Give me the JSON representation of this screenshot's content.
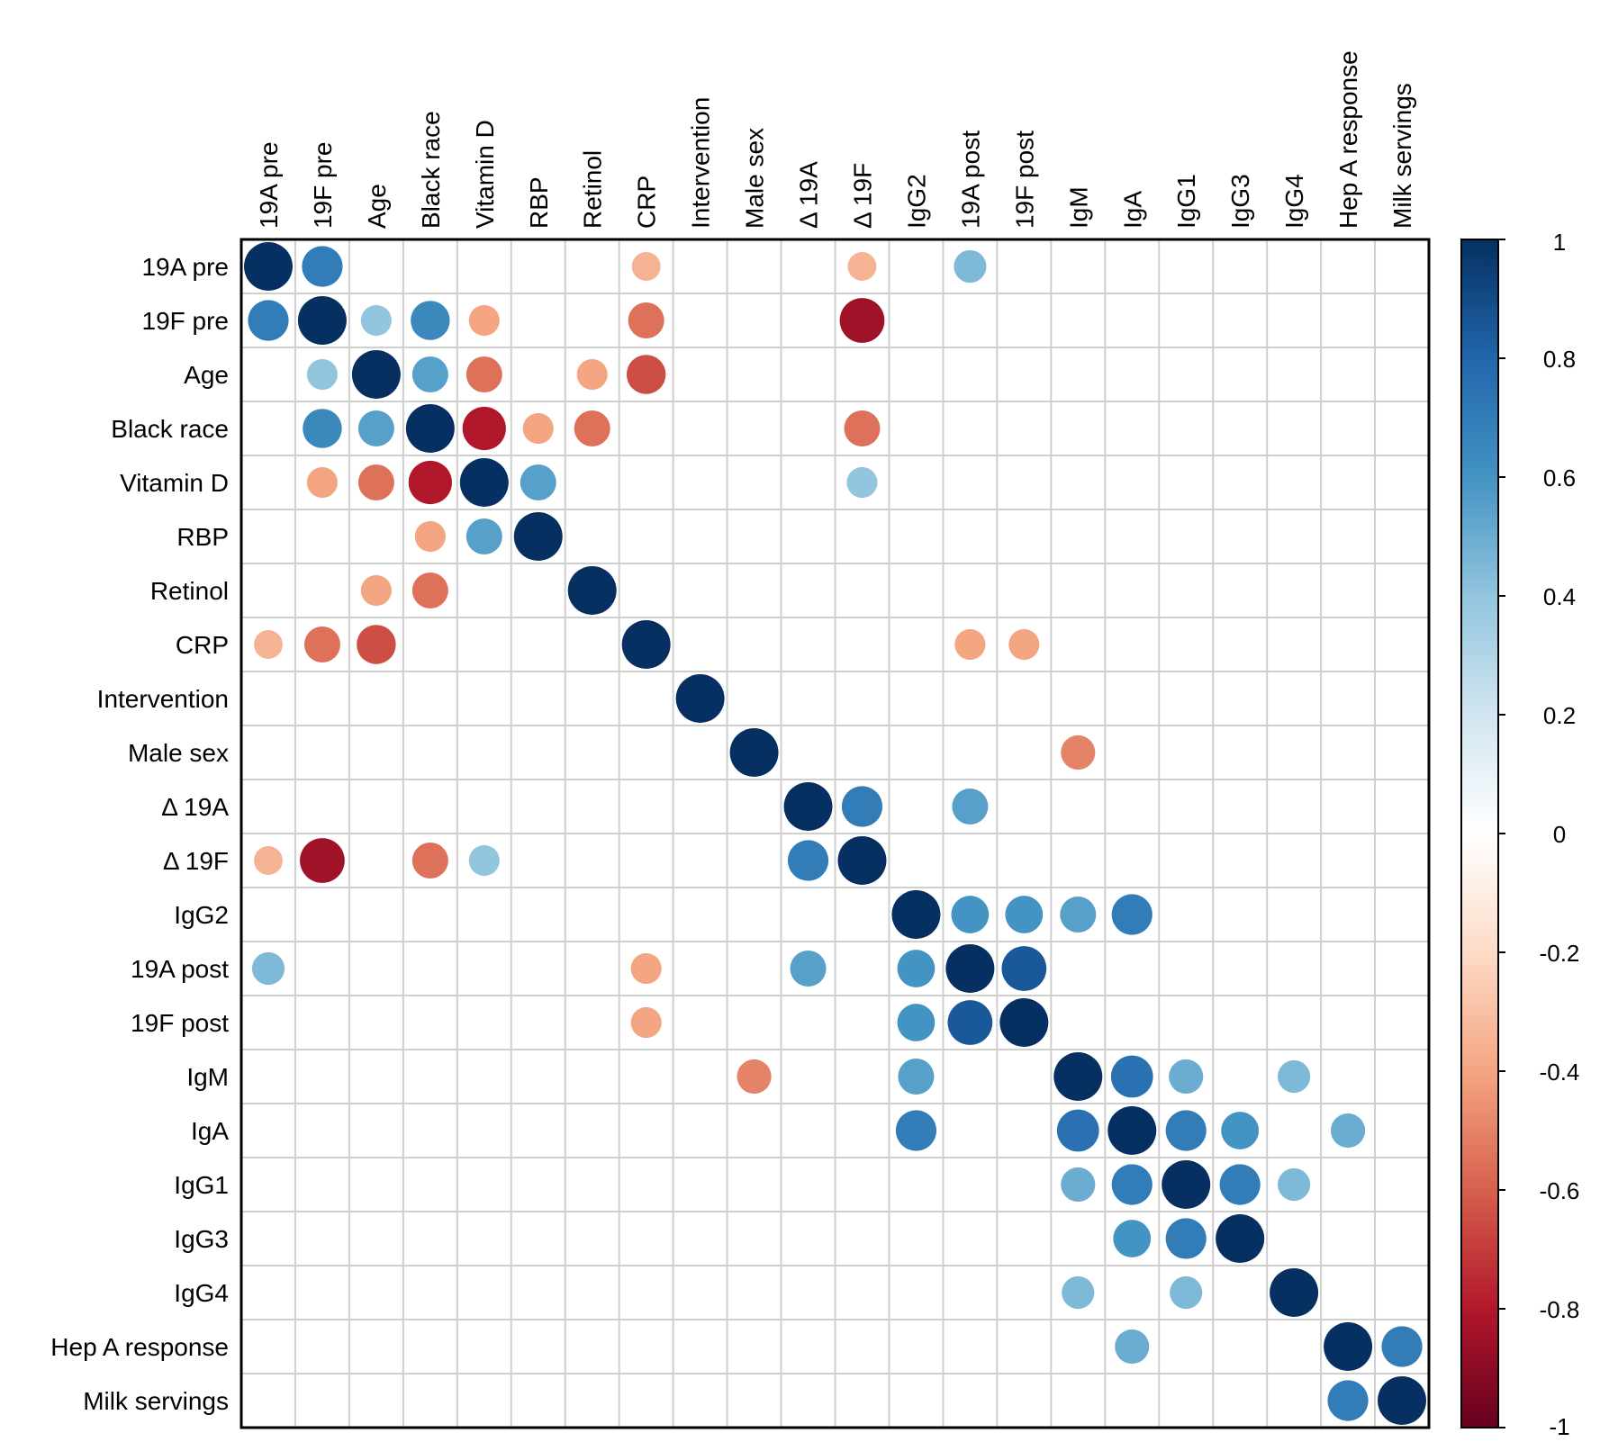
{
  "chart_data": {
    "type": "heatmap",
    "subtype": "correlation-circles",
    "variables": [
      "19A pre",
      "19F pre",
      "Age",
      "Black race",
      "Vitamin D",
      "RBP",
      "Retinol",
      "CRP",
      "Intervention",
      "Male sex",
      "Δ 19A",
      "Δ 19F",
      "IgG2",
      "19A post",
      "19F post",
      "IgM",
      "IgA",
      "IgG1",
      "IgG3",
      "IgG4",
      "Hep A response",
      "Milk servings"
    ],
    "matrix": [
      [
        1,
        0.7,
        0,
        0,
        0,
        0,
        0,
        -0.35,
        0,
        0,
        0,
        -0.35,
        0,
        0.45,
        0,
        0,
        0,
        0,
        0,
        0,
        0,
        0
      ],
      [
        0.7,
        1,
        0.4,
        0.65,
        -0.4,
        0,
        0,
        -0.55,
        0,
        0,
        0,
        -0.85,
        0,
        0,
        0,
        0,
        0,
        0,
        0,
        0,
        0,
        0
      ],
      [
        0,
        0.4,
        1,
        0.55,
        -0.55,
        0,
        -0.4,
        -0.65,
        0,
        0,
        0,
        0,
        0,
        0,
        0,
        0,
        0,
        0,
        0,
        0,
        0,
        0
      ],
      [
        0,
        0.65,
        0.55,
        1,
        -0.8,
        -0.4,
        -0.55,
        0,
        0,
        0,
        0,
        -0.55,
        0,
        0,
        0,
        0,
        0,
        0,
        0,
        0,
        0,
        0
      ],
      [
        0,
        -0.4,
        -0.55,
        -0.8,
        1,
        0.55,
        0,
        0,
        0,
        0,
        0,
        0.4,
        0,
        0,
        0,
        0,
        0,
        0,
        0,
        0,
        0,
        0
      ],
      [
        0,
        0,
        0,
        -0.4,
        0.55,
        1,
        0,
        0,
        0,
        0,
        0,
        0,
        0,
        0,
        0,
        0,
        0,
        0,
        0,
        0,
        0,
        0
      ],
      [
        0,
        0,
        -0.4,
        -0.55,
        0,
        0,
        1,
        0,
        0,
        0,
        0,
        0,
        0,
        0,
        0,
        0,
        0,
        0,
        0,
        0,
        0,
        0
      ],
      [
        -0.35,
        -0.55,
        -0.65,
        0,
        0,
        0,
        0,
        1,
        0,
        0,
        0,
        0,
        0,
        -0.4,
        -0.4,
        0,
        0,
        0,
        0,
        0,
        0,
        0
      ],
      [
        0,
        0,
        0,
        0,
        0,
        0,
        0,
        0,
        1,
        0,
        0,
        0,
        0,
        0,
        0,
        0,
        0,
        0,
        0,
        0,
        0,
        0
      ],
      [
        0,
        0,
        0,
        0,
        0,
        0,
        0,
        0,
        0,
        1,
        0,
        0,
        0,
        0,
        0,
        -0.5,
        0,
        0,
        0,
        0,
        0,
        0
      ],
      [
        0,
        0,
        0,
        0,
        0,
        0,
        0,
        0,
        0,
        0,
        1,
        0.7,
        0,
        0.55,
        0,
        0,
        0,
        0,
        0,
        0,
        0,
        0
      ],
      [
        -0.35,
        -0.85,
        0,
        -0.55,
        0.4,
        0,
        0,
        0,
        0,
        0,
        0.7,
        1,
        0,
        0,
        0,
        0,
        0,
        0,
        0,
        0,
        0,
        0
      ],
      [
        0,
        0,
        0,
        0,
        0,
        0,
        0,
        0,
        0,
        0,
        0,
        0,
        1,
        0.6,
        0.6,
        0.55,
        0.7,
        0,
        0,
        0,
        0,
        0
      ],
      [
        0.45,
        0,
        0,
        0,
        0,
        0,
        0,
        -0.4,
        0,
        0,
        0.55,
        0,
        0.6,
        1,
        0.85,
        0,
        0,
        0,
        0,
        0,
        0,
        0
      ],
      [
        0,
        0,
        0,
        0,
        0,
        0,
        0,
        -0.4,
        0,
        0,
        0,
        0,
        0.6,
        0.85,
        1,
        0,
        0,
        0,
        0,
        0,
        0,
        0
      ],
      [
        0,
        0,
        0,
        0,
        0,
        0,
        0,
        0,
        0,
        -0.5,
        0,
        0,
        0.55,
        0,
        0,
        1,
        0.75,
        0.5,
        0,
        0.45,
        0,
        0
      ],
      [
        0,
        0,
        0,
        0,
        0,
        0,
        0,
        0,
        0,
        0,
        0,
        0,
        0.7,
        0,
        0,
        0.75,
        1,
        0.7,
        0.6,
        0,
        0.5,
        0
      ],
      [
        0,
        0,
        0,
        0,
        0,
        0,
        0,
        0,
        0,
        0,
        0,
        0,
        0,
        0,
        0,
        0.5,
        0.7,
        1,
        0.7,
        0.45,
        0,
        0
      ],
      [
        0,
        0,
        0,
        0,
        0,
        0,
        0,
        0,
        0,
        0,
        0,
        0,
        0,
        0,
        0,
        0,
        0.6,
        0.7,
        1,
        0,
        0,
        0
      ],
      [
        0,
        0,
        0,
        0,
        0,
        0,
        0,
        0,
        0,
        0,
        0,
        0,
        0,
        0,
        0,
        0.45,
        0,
        0.45,
        0,
        1,
        0,
        0
      ],
      [
        0,
        0,
        0,
        0,
        0,
        0,
        0,
        0,
        0,
        0,
        0,
        0,
        0,
        0,
        0,
        0,
        0.5,
        0,
        0,
        0,
        1,
        0.7
      ],
      [
        0,
        0,
        0,
        0,
        0,
        0,
        0,
        0,
        0,
        0,
        0,
        0,
        0,
        0,
        0,
        0,
        0,
        0,
        0,
        0,
        0.7,
        1
      ]
    ],
    "colorbar": {
      "range": [
        -1,
        1
      ],
      "ticks": [
        1,
        0.8,
        0.6,
        0.4,
        0.2,
        0,
        -0.2,
        -0.4,
        -0.6,
        -0.8,
        -1
      ],
      "tick_labels": [
        "1",
        "0.8",
        "0.6",
        "0.4",
        "0.2",
        "0",
        "-0.2",
        "-0.4",
        "-0.6",
        "-0.8",
        "-1"
      ],
      "palette": [
        "#67001f",
        "#b2182b",
        "#d6604d",
        "#f4a582",
        "#fddbc7",
        "#ffffff",
        "#d1e5f0",
        "#92c5de",
        "#4393c3",
        "#2166ac",
        "#053061"
      ]
    },
    "legend_position": "right",
    "grid": true
  }
}
